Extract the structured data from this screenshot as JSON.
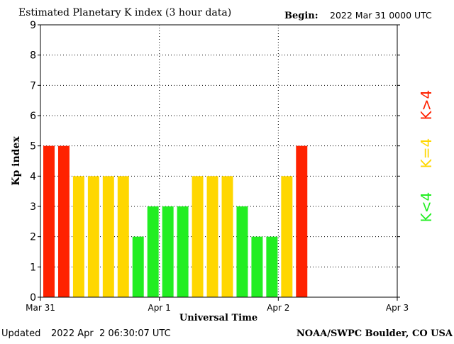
{
  "header": {
    "title": "Estimated Planetary K index (3 hour data)",
    "begin_label": "Begin:",
    "begin_value": "2022 Mar 31 0000 UTC"
  },
  "footer": {
    "updated_label": "Updated",
    "updated_value": "2022 Apr  2 06:30:07 UTC",
    "source": "NOAA/SWPC Boulder, CO USA"
  },
  "legend": {
    "high": "K>4",
    "mid": "K=4",
    "low": "K<4"
  },
  "colors": {
    "low": "#22ee22",
    "mid": "#ffd700",
    "high": "#ff2200",
    "grid": "#000000",
    "axis": "#000000"
  },
  "chart_data": {
    "type": "bar",
    "title": "Estimated Planetary K index (3 hour data)",
    "xlabel": "Universal Time",
    "ylabel": "Kp index",
    "ylim": [
      0,
      9
    ],
    "yticks": [
      "0",
      "1",
      "2",
      "3",
      "4",
      "5",
      "6",
      "7",
      "8",
      "9"
    ],
    "xticks": [
      "Mar 31",
      "Apr 1",
      "Apr 2",
      "Apr 3"
    ],
    "slots_per_day": 8,
    "days": 3,
    "grid": true,
    "values": [
      5,
      5,
      4,
      4,
      4,
      4,
      2,
      3,
      3,
      3,
      4,
      4,
      4,
      3,
      2,
      2,
      4,
      5
    ]
  }
}
